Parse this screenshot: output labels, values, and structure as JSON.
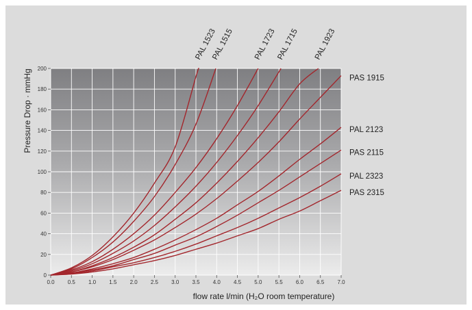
{
  "chart_data": {
    "type": "line",
    "title": "",
    "xlabel": "flow rate l/min (H₂O room temperature)",
    "ylabel": "Pressure Drop · mmHg",
    "xlim": [
      0,
      7
    ],
    "ylim": [
      0,
      200
    ],
    "x_ticks": [
      "0.0",
      "0.5",
      "1.0",
      "1.5",
      "2.0",
      "2.5",
      "3.0",
      "3.5",
      "4.0",
      "4.5",
      "5.0",
      "5.5",
      "6.0",
      "6.5",
      "7.0"
    ],
    "y_ticks": [
      "0",
      "20",
      "40",
      "60",
      "80",
      "100",
      "120",
      "140",
      "160",
      "180",
      "200"
    ],
    "grid": true,
    "legend": "direct labels at line ends",
    "line_color": "#a3262c",
    "series": [
      {
        "name": "PAL 1523",
        "points": [
          [
            0,
            0
          ],
          [
            0.5,
            7
          ],
          [
            1,
            19
          ],
          [
            1.5,
            37
          ],
          [
            2,
            60
          ],
          [
            2.5,
            89
          ],
          [
            3,
            124
          ],
          [
            3.5,
            192
          ],
          [
            3.57,
            200
          ]
        ]
      },
      {
        "name": "PAL 1515",
        "points": [
          [
            0,
            0
          ],
          [
            0.5,
            6
          ],
          [
            1,
            17
          ],
          [
            1.5,
            32
          ],
          [
            2,
            52
          ],
          [
            2.5,
            76
          ],
          [
            3,
            107
          ],
          [
            3.5,
            146
          ],
          [
            3.98,
            200
          ]
        ]
      },
      {
        "name": "PAL 1723",
        "points": [
          [
            0,
            0
          ],
          [
            0.5,
            5
          ],
          [
            1,
            13
          ],
          [
            1.5,
            25
          ],
          [
            2,
            40
          ],
          [
            2.5,
            58
          ],
          [
            3,
            80
          ],
          [
            3.5,
            104
          ],
          [
            4,
            132
          ],
          [
            4.5,
            164
          ],
          [
            5,
            200
          ]
        ]
      },
      {
        "name": "PAL 1715",
        "points": [
          [
            0,
            0
          ],
          [
            0.5,
            4
          ],
          [
            1,
            11
          ],
          [
            1.5,
            21
          ],
          [
            2,
            33
          ],
          [
            2.5,
            48
          ],
          [
            3,
            66
          ],
          [
            3.5,
            86
          ],
          [
            4,
            109
          ],
          [
            4.5,
            135
          ],
          [
            5,
            164
          ],
          [
            5.55,
            200
          ]
        ]
      },
      {
        "name": "PAL 1923",
        "points": [
          [
            0,
            0
          ],
          [
            0.5,
            3
          ],
          [
            1,
            9
          ],
          [
            1.5,
            17
          ],
          [
            2,
            27
          ],
          [
            2.5,
            39
          ],
          [
            3,
            54
          ],
          [
            3.5,
            70
          ],
          [
            4,
            89
          ],
          [
            4.5,
            110
          ],
          [
            5,
            133
          ],
          [
            5.5,
            158
          ],
          [
            6,
            185
          ],
          [
            6.45,
            200
          ]
        ]
      },
      {
        "name": "PAS 1915",
        "points": [
          [
            0,
            0
          ],
          [
            0.5,
            3
          ],
          [
            1,
            8
          ],
          [
            1.5,
            15
          ],
          [
            2,
            24
          ],
          [
            2.5,
            34
          ],
          [
            3,
            46
          ],
          [
            3.5,
            59
          ],
          [
            4,
            74
          ],
          [
            4.5,
            91
          ],
          [
            5,
            109
          ],
          [
            5.5,
            129
          ],
          [
            6,
            151
          ],
          [
            6.5,
            172
          ],
          [
            7,
            193
          ]
        ]
      },
      {
        "name": "PAL 2123",
        "points": [
          [
            0,
            0
          ],
          [
            0.5,
            2
          ],
          [
            1,
            6
          ],
          [
            1.5,
            11
          ],
          [
            2,
            17
          ],
          [
            2.5,
            25
          ],
          [
            3,
            34
          ],
          [
            3.5,
            44
          ],
          [
            4,
            55
          ],
          [
            4.5,
            68
          ],
          [
            5,
            81
          ],
          [
            5.5,
            96
          ],
          [
            6,
            112
          ],
          [
            6.5,
            127
          ],
          [
            7,
            143
          ]
        ]
      },
      {
        "name": "PAS 2115",
        "points": [
          [
            0,
            0
          ],
          [
            0.5,
            2
          ],
          [
            1,
            5
          ],
          [
            1.5,
            9
          ],
          [
            2,
            15
          ],
          [
            2.5,
            21
          ],
          [
            3,
            29
          ],
          [
            3.5,
            37
          ],
          [
            4,
            47
          ],
          [
            4.5,
            58
          ],
          [
            5,
            70
          ],
          [
            5.5,
            82
          ],
          [
            6,
            95
          ],
          [
            6.5,
            108
          ],
          [
            7,
            121
          ]
        ]
      },
      {
        "name": "PAL 2323",
        "points": [
          [
            0,
            0
          ],
          [
            0.5,
            1.5
          ],
          [
            1,
            4
          ],
          [
            1.5,
            8
          ],
          [
            2,
            12
          ],
          [
            2.5,
            17
          ],
          [
            3,
            23
          ],
          [
            3.5,
            30
          ],
          [
            4,
            38
          ],
          [
            4.5,
            46
          ],
          [
            5,
            55
          ],
          [
            5.5,
            65
          ],
          [
            6,
            75
          ],
          [
            6.5,
            86
          ],
          [
            7,
            98
          ]
        ]
      },
      {
        "name": "PAS 2315",
        "points": [
          [
            0,
            0
          ],
          [
            0.5,
            1
          ],
          [
            1,
            3
          ],
          [
            1.5,
            6
          ],
          [
            2,
            10
          ],
          [
            2.5,
            14
          ],
          [
            3,
            19
          ],
          [
            3.5,
            25
          ],
          [
            4,
            31
          ],
          [
            4.5,
            38
          ],
          [
            5,
            45
          ],
          [
            5.5,
            54
          ],
          [
            6,
            62
          ],
          [
            6.5,
            72
          ],
          [
            7,
            82
          ]
        ]
      }
    ]
  }
}
